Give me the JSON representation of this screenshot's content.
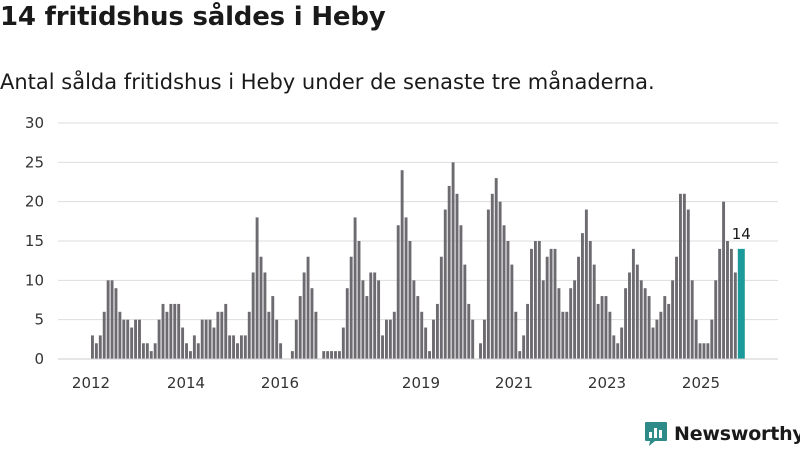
{
  "title": "14 fritidshus såldes i Heby",
  "subtitle": "Antal sålda fritidshus i Heby under de senaste tre månaderna.",
  "brand": "Newsworthy",
  "colors": {
    "bar": "#6d6b70",
    "highlight": "#1a9a9a",
    "brand": "#2e8b87",
    "grid": "#dddddd"
  },
  "chart_data": {
    "type": "bar",
    "title": "14 fritidshus såldes i Heby",
    "subtitle": "Antal sålda fritidshus i Heby under de senaste tre månaderna.",
    "xlabel": "",
    "ylabel": "",
    "ylim": [
      0,
      30
    ],
    "yticks": [
      0,
      5,
      10,
      15,
      20,
      25,
      30
    ],
    "xticks": [
      "2012",
      "2014",
      "2016",
      "2019",
      "2021",
      "2023",
      "2025"
    ],
    "grid": true,
    "highlight_last": true,
    "last_label": "14",
    "values": [
      3,
      2,
      3,
      6,
      10,
      10,
      9,
      6,
      5,
      5,
      4,
      5,
      5,
      2,
      2,
      1,
      2,
      5,
      7,
      6,
      7,
      7,
      7,
      4,
      2,
      1,
      3,
      2,
      5,
      5,
      5,
      4,
      6,
      6,
      7,
      3,
      3,
      2,
      3,
      3,
      6,
      11,
      18,
      13,
      11,
      6,
      8,
      5,
      2,
      0,
      0,
      1,
      5,
      8,
      11,
      13,
      9,
      6,
      0,
      1,
      1,
      1,
      1,
      1,
      4,
      9,
      13,
      18,
      15,
      10,
      8,
      11,
      11,
      10,
      3,
      5,
      5,
      6,
      17,
      24,
      18,
      15,
      10,
      8,
      6,
      4,
      1,
      5,
      7,
      13,
      19,
      22,
      25,
      21,
      17,
      12,
      7,
      5,
      0,
      2,
      5,
      19,
      21,
      23,
      20,
      17,
      15,
      12,
      6,
      1,
      3,
      7,
      14,
      15,
      15,
      10,
      13,
      14,
      14,
      9,
      6,
      6,
      9,
      10,
      13,
      16,
      19,
      15,
      12,
      7,
      8,
      8,
      6,
      3,
      2,
      4,
      9,
      11,
      14,
      12,
      10,
      9,
      8,
      4,
      5,
      6,
      8,
      7,
      10,
      13,
      21,
      21,
      19,
      10,
      5,
      2,
      2,
      2,
      5,
      10,
      14,
      20,
      15,
      14,
      11,
      14
    ]
  }
}
